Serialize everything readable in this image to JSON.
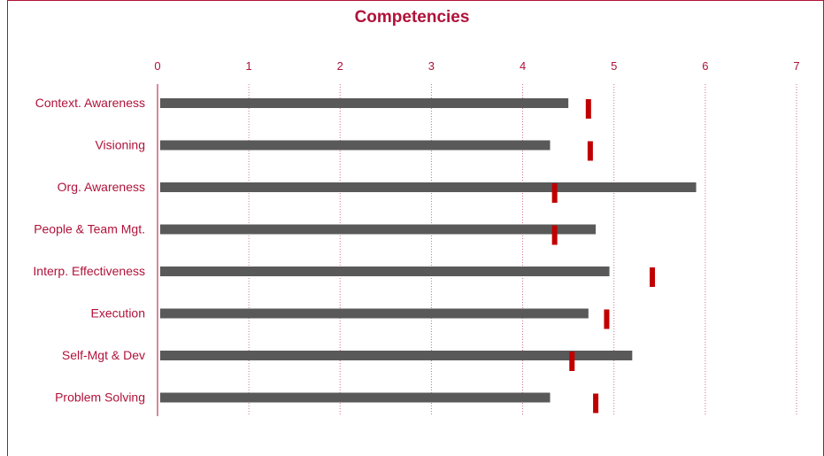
{
  "chart_data": {
    "type": "bar",
    "orientation": "horizontal",
    "title": "Competencies",
    "categories": [
      "Context. Awareness",
      "Visioning",
      "Org. Awareness",
      "People & Team Mgt.",
      "Interp. Effectiveness",
      "Execution",
      "Self-Mgt & Dev",
      "Problem Solving"
    ],
    "series": [
      {
        "values": [
          4.5,
          4.3,
          5.9,
          4.8,
          4.95,
          4.72,
          5.2,
          4.3
        ],
        "color": "#595959",
        "mark": "bar"
      },
      {
        "values": [
          4.72,
          4.74,
          4.35,
          4.35,
          5.42,
          4.92,
          4.54,
          4.8
        ],
        "color": "#c00000",
        "mark": "tick"
      }
    ],
    "xticks": [
      "0",
      "1",
      "2",
      "3",
      "4",
      "5",
      "6",
      "7"
    ],
    "xlim": [
      0,
      7
    ],
    "xaxis_position": "top",
    "grid": true,
    "axis_color": "#b0123a",
    "text_color": "#b0123a"
  }
}
